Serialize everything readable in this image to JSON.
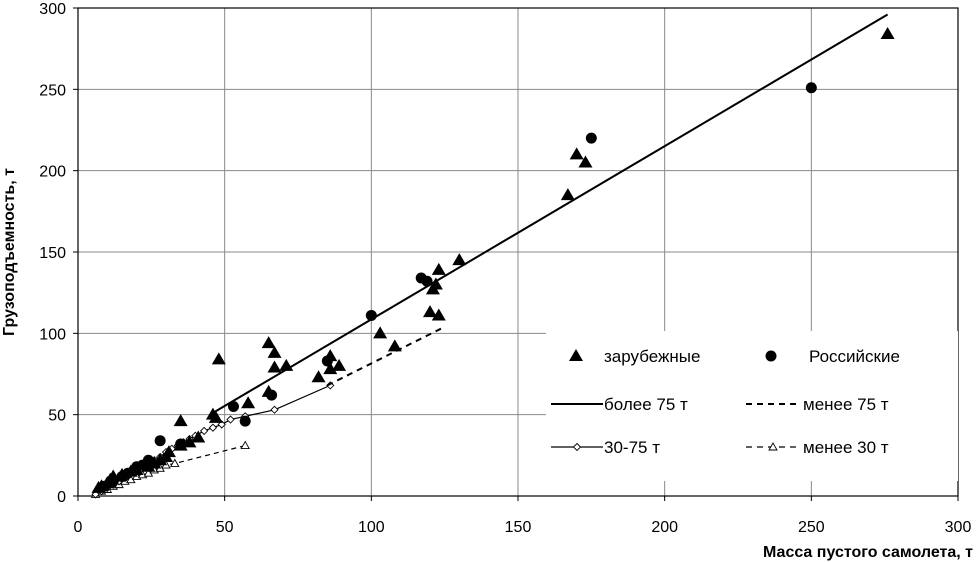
{
  "chart_data": {
    "type": "scatter",
    "xlabel": "Масса пустого самолета, т",
    "ylabel": "Грузоподъемность, т",
    "xlim": [
      0,
      300
    ],
    "ylim": [
      0,
      300
    ],
    "x_ticks": [
      0,
      50,
      100,
      150,
      200,
      250,
      300
    ],
    "y_ticks": [
      0,
      50,
      100,
      150,
      200,
      250,
      300
    ],
    "grid": true,
    "legend_position": "lower-right",
    "series": [
      {
        "name": "зарубежные",
        "kind": "scatter",
        "marker": "triangle",
        "points": [
          [
            276,
            284
          ],
          [
            170,
            210
          ],
          [
            173,
            205
          ],
          [
            167,
            185
          ],
          [
            130,
            145
          ],
          [
            123,
            139
          ],
          [
            122,
            130
          ],
          [
            121,
            127
          ],
          [
            120,
            113
          ],
          [
            123,
            111
          ],
          [
            103,
            100
          ],
          [
            108,
            92
          ],
          [
            89,
            80
          ],
          [
            86,
            86
          ],
          [
            86,
            78
          ],
          [
            82,
            73
          ],
          [
            71,
            80
          ],
          [
            67,
            79
          ],
          [
            67,
            88
          ],
          [
            65,
            94
          ],
          [
            65,
            64
          ],
          [
            58,
            57
          ],
          [
            48,
            84
          ],
          [
            47,
            48
          ],
          [
            46,
            50
          ],
          [
            35,
            46
          ],
          [
            41,
            36
          ],
          [
            38,
            33
          ],
          [
            35,
            31
          ],
          [
            31,
            27
          ],
          [
            30,
            24
          ],
          [
            28,
            22
          ],
          [
            26,
            20
          ],
          [
            24,
            18
          ],
          [
            20,
            16
          ],
          [
            18,
            15
          ],
          [
            15,
            13
          ],
          [
            12,
            12
          ],
          [
            11,
            10
          ],
          [
            10,
            8
          ],
          [
            8,
            6
          ],
          [
            7,
            5
          ]
        ]
      },
      {
        "name": "Российские",
        "kind": "scatter",
        "marker": "circle",
        "points": [
          [
            250,
            251
          ],
          [
            175,
            220
          ],
          [
            117,
            134
          ],
          [
            119,
            132
          ],
          [
            100,
            111
          ],
          [
            85,
            83
          ],
          [
            66,
            62
          ],
          [
            57,
            46
          ],
          [
            53,
            55
          ],
          [
            35,
            32
          ],
          [
            28,
            34
          ],
          [
            24,
            22
          ],
          [
            22,
            19
          ],
          [
            20,
            18
          ],
          [
            17,
            14
          ],
          [
            15,
            12
          ],
          [
            12,
            9
          ],
          [
            9,
            6
          ]
        ]
      },
      {
        "name": "более 75 т",
        "kind": "line",
        "style": "solid",
        "points": [
          [
            45,
            50
          ],
          [
            276,
            296
          ]
        ]
      },
      {
        "name": "менее 75 т",
        "kind": "line",
        "style": "dashed",
        "points": [
          [
            85,
            68
          ],
          [
            125,
            104
          ]
        ]
      },
      {
        "name": "30-75 т",
        "kind": "line-marker",
        "style": "solid",
        "marker": "diamond",
        "points": [
          [
            6,
            1
          ],
          [
            8,
            3
          ],
          [
            10,
            5
          ],
          [
            12,
            7
          ],
          [
            14,
            9
          ],
          [
            16,
            11
          ],
          [
            18,
            14
          ],
          [
            20,
            16
          ],
          [
            22,
            18
          ],
          [
            24,
            20
          ],
          [
            26,
            22
          ],
          [
            28,
            24
          ],
          [
            30,
            27
          ],
          [
            32,
            29
          ],
          [
            34,
            31
          ],
          [
            36,
            33
          ],
          [
            38,
            35
          ],
          [
            40,
            37
          ],
          [
            43,
            40
          ],
          [
            46,
            42
          ],
          [
            49,
            44
          ],
          [
            52,
            47
          ],
          [
            57,
            49
          ],
          [
            67,
            53
          ],
          [
            86,
            68
          ]
        ]
      },
      {
        "name": "менее 30 т",
        "kind": "line-marker",
        "style": "dashed",
        "marker": "open-triangle",
        "points": [
          [
            6,
            1
          ],
          [
            8,
            3
          ],
          [
            10,
            4
          ],
          [
            12,
            6
          ],
          [
            14,
            7
          ],
          [
            16,
            9
          ],
          [
            18,
            10
          ],
          [
            20,
            12
          ],
          [
            22,
            13
          ],
          [
            24,
            14
          ],
          [
            26,
            16
          ],
          [
            28,
            17
          ],
          [
            30,
            19
          ],
          [
            33,
            20
          ],
          [
            57,
            31
          ]
        ]
      }
    ],
    "legend": [
      {
        "label": "зарубежные",
        "series": 0
      },
      {
        "label": "Российские",
        "series": 1
      },
      {
        "label": "более 75 т",
        "series": 2
      },
      {
        "label": "менее 75 т",
        "series": 3
      },
      {
        "label": "30-75 т",
        "series": 4
      },
      {
        "label": "менее 30 т",
        "series": 5
      }
    ]
  }
}
